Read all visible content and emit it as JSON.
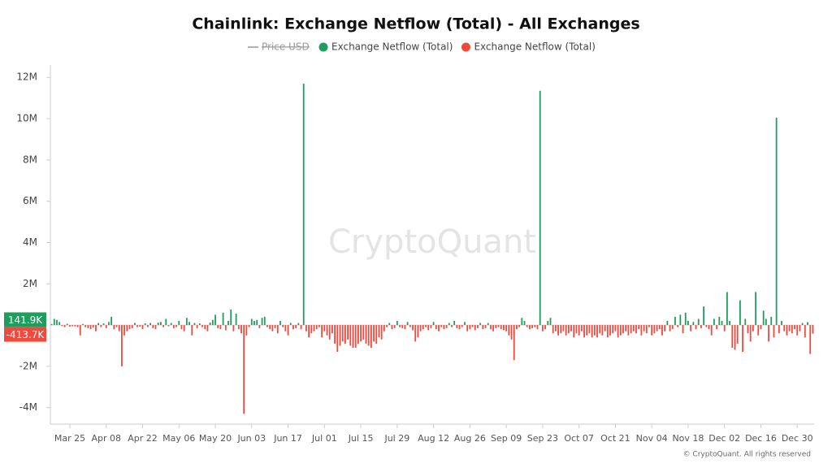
{
  "chart_data": {
    "type": "bar",
    "title": "Chainlink: Exchange Netflow (Total) - All Exchanges",
    "price_legend": "Price USD",
    "watermark": "CryptoQuant",
    "footer": "© CryptoQuant. All rights reserved",
    "ylim": [
      -4800000,
      12600000
    ],
    "yticks": [
      {
        "value": -4000000,
        "label": "-4M"
      },
      {
        "value": -2000000,
        "label": "-2M"
      },
      {
        "value": 2000000,
        "label": "2M"
      },
      {
        "value": 4000000,
        "label": "4M"
      },
      {
        "value": 6000000,
        "label": "6M"
      },
      {
        "value": 8000000,
        "label": "8M"
      },
      {
        "value": 10000000,
        "label": "10M"
      },
      {
        "value": 12000000,
        "label": "12M"
      }
    ],
    "categories": [
      null,
      null,
      null,
      null,
      null,
      null,
      null,
      "Mar 25",
      null,
      null,
      null,
      null,
      null,
      null,
      null,
      null,
      null,
      null,
      null,
      null,
      null,
      "Apr 08",
      null,
      null,
      null,
      null,
      null,
      null,
      null,
      null,
      null,
      null,
      null,
      null,
      null,
      "Apr 22",
      null,
      null,
      null,
      null,
      null,
      null,
      null,
      null,
      null,
      null,
      null,
      null,
      null,
      "May 06",
      null,
      null,
      null,
      null,
      null,
      null,
      null,
      null,
      null,
      null,
      null,
      null,
      null,
      "May 20",
      null,
      null,
      null,
      null,
      null,
      null,
      null,
      null,
      null,
      null,
      null,
      null,
      null,
      "Jun 03",
      null,
      null,
      null,
      null,
      null,
      null,
      null,
      null,
      null,
      null,
      null,
      null,
      null,
      "Jun 17",
      null,
      null,
      null,
      null,
      null,
      null,
      null,
      null,
      null,
      null,
      null,
      null,
      null,
      "Jul 01",
      null,
      null,
      null,
      null,
      null,
      null,
      null,
      null,
      null,
      null,
      null,
      null,
      null,
      "Jul 15",
      null,
      null,
      null,
      null,
      null,
      null,
      null,
      null,
      null,
      null,
      null,
      null,
      null,
      "Jul 29",
      null,
      null,
      null,
      null,
      null,
      null,
      null,
      null,
      null,
      null,
      null,
      null,
      null,
      "Aug 12",
      null,
      null,
      null,
      null,
      null,
      null,
      null,
      null,
      null,
      null,
      null,
      null,
      null,
      "Aug 26",
      null,
      null,
      null,
      null,
      null,
      null,
      null,
      null,
      null,
      null,
      null,
      null,
      null,
      "Sep 09",
      null,
      null,
      null,
      null,
      null,
      null,
      null,
      null,
      null,
      null,
      null,
      null,
      null,
      "Sep 23",
      null,
      null,
      null,
      null,
      null,
      null,
      null,
      null,
      null,
      null,
      null,
      null,
      null,
      "Oct 07",
      null,
      null,
      null,
      null,
      null,
      null,
      null,
      null,
      null,
      null,
      null,
      null,
      null,
      "Oct 21",
      null,
      null,
      null,
      null,
      null,
      null,
      null,
      null,
      null,
      null,
      null,
      null,
      null,
      "Nov 04",
      null,
      null,
      null,
      null,
      null,
      null,
      null,
      null,
      null,
      null,
      null,
      null,
      null,
      "Nov 18",
      null,
      null,
      null,
      null,
      null,
      null,
      null,
      null,
      null,
      null,
      null,
      null,
      null,
      "Dec 02",
      null,
      null,
      null,
      null,
      null,
      null,
      null,
      null,
      null,
      null,
      null,
      null,
      null,
      "Dec 16",
      null,
      null,
      null,
      null,
      null,
      null,
      null,
      null,
      null,
      null,
      null,
      null,
      null,
      "Dec 30",
      null,
      null,
      null,
      null,
      null,
      null
    ],
    "series": [
      {
        "name": "Exchange Netflow (Total)",
        "color": "#1e9e5e",
        "current_label": "141.9K",
        "values": [
          50000,
          300000,
          250000,
          150000,
          null,
          null,
          60000,
          null,
          null,
          null,
          null,
          null,
          50000,
          null,
          null,
          null,
          null,
          null,
          100000,
          null,
          80000,
          null,
          150000,
          400000,
          null,
          null,
          null,
          null,
          null,
          null,
          null,
          null,
          100000,
          null,
          null,
          null,
          80000,
          null,
          100000,
          null,
          null,
          120000,
          150000,
          null,
          300000,
          null,
          100000,
          null,
          null,
          200000,
          null,
          null,
          350000,
          150000,
          null,
          100000,
          null,
          80000,
          null,
          null,
          null,
          120000,
          250000,
          500000,
          null,
          null,
          600000,
          null,
          200000,
          750000,
          null,
          550000,
          null,
          null,
          null,
          null,
          null,
          300000,
          200000,
          250000,
          null,
          350000,
          400000,
          null,
          null,
          null,
          null,
          null,
          200000,
          null,
          null,
          null,
          100000,
          null,
          null,
          100000,
          null,
          11700000,
          null,
          null,
          null,
          null,
          null,
          null,
          null,
          null,
          null,
          null,
          null,
          null,
          null,
          null,
          null,
          null,
          null,
          null,
          null,
          null,
          null,
          null,
          null,
          null,
          null,
          null,
          null,
          null,
          null,
          null,
          null,
          null,
          100000,
          null,
          null,
          200000,
          null,
          null,
          null,
          150000,
          null,
          null,
          null,
          null,
          null,
          null,
          null,
          null,
          null,
          150000,
          null,
          null,
          null,
          null,
          null,
          100000,
          null,
          200000,
          null,
          null,
          null,
          150000,
          null,
          null,
          null,
          null,
          null,
          100000,
          null,
          null,
          100000,
          null,
          null,
          null,
          null,
          null,
          null,
          null,
          null,
          null,
          null,
          null,
          null,
          350000,
          200000,
          null,
          null,
          null,
          null,
          null,
          11350000,
          null,
          null,
          200000,
          350000,
          null,
          null,
          null,
          null,
          null,
          null,
          null,
          null,
          null,
          null,
          null,
          null,
          null,
          null,
          null,
          null,
          null,
          null,
          null,
          null,
          null,
          null,
          null,
          null,
          null,
          null,
          null,
          null,
          null,
          null,
          null,
          null,
          null,
          null,
          null,
          null,
          null,
          null,
          null,
          null,
          null,
          null,
          null,
          null,
          200000,
          null,
          null,
          400000,
          null,
          500000,
          null,
          600000,
          200000,
          null,
          150000,
          null,
          300000,
          null,
          900000,
          null,
          null,
          null,
          300000,
          null,
          400000,
          200000,
          null,
          1600000,
          200000,
          null,
          null,
          null,
          1200000,
          null,
          300000,
          null,
          null,
          null,
          1600000,
          null,
          null,
          700000,
          300000,
          null,
          400000,
          null,
          10050000,
          null,
          200000,
          null,
          null,
          null,
          null,
          null,
          null,
          null,
          100000,
          null,
          141900,
          null,
          null
        ]
      },
      {
        "name": "Exchange Netflow (Total)",
        "color": "#f0493e",
        "current_label": "-413.7K",
        "values": [
          null,
          null,
          null,
          null,
          -50000,
          -100000,
          null,
          -80000,
          -60000,
          -70000,
          -100000,
          -500000,
          null,
          -100000,
          -150000,
          -200000,
          -120000,
          -300000,
          null,
          -100000,
          null,
          -150000,
          null,
          null,
          -200000,
          -100000,
          -300000,
          -2000000,
          -500000,
          -300000,
          -200000,
          -150000,
          null,
          -100000,
          -80000,
          -200000,
          null,
          -100000,
          null,
          -150000,
          -200000,
          null,
          null,
          -100000,
          null,
          -60000,
          null,
          -150000,
          -100000,
          null,
          -200000,
          -300000,
          null,
          null,
          -500000,
          null,
          -150000,
          null,
          -100000,
          -200000,
          -300000,
          null,
          null,
          null,
          -150000,
          -200000,
          null,
          -250000,
          null,
          null,
          -300000,
          null,
          -200000,
          -400000,
          -4300000,
          -500000,
          -100000,
          null,
          null,
          null,
          -150000,
          null,
          null,
          -100000,
          -200000,
          -300000,
          -150000,
          -400000,
          null,
          -100000,
          -300000,
          -500000,
          null,
          -200000,
          -150000,
          null,
          -200000,
          null,
          -300000,
          -600000,
          -400000,
          -300000,
          -200000,
          -100000,
          -600000,
          -300000,
          -500000,
          -700000,
          -400000,
          -900000,
          -1300000,
          -1000000,
          -800000,
          -900000,
          -700000,
          -1000000,
          -1100000,
          -1100000,
          -900000,
          -800000,
          -700000,
          -900000,
          -1000000,
          -1100000,
          -800000,
          -900000,
          -600000,
          -700000,
          -300000,
          -100000,
          null,
          -200000,
          -150000,
          null,
          -100000,
          -150000,
          -200000,
          null,
          -100000,
          -250000,
          -800000,
          -600000,
          -300000,
          -200000,
          -100000,
          -250000,
          -150000,
          null,
          -200000,
          -300000,
          -100000,
          -200000,
          -150000,
          null,
          -100000,
          null,
          -150000,
          -200000,
          -100000,
          null,
          -300000,
          -200000,
          -100000,
          -250000,
          -150000,
          null,
          -200000,
          -150000,
          null,
          -200000,
          -300000,
          -150000,
          -100000,
          -200000,
          -250000,
          -300000,
          -500000,
          -700000,
          -1700000,
          -200000,
          -100000,
          null,
          null,
          -100000,
          -200000,
          -150000,
          -100000,
          -200000,
          null,
          -300000,
          -200000,
          null,
          null,
          -400000,
          -300000,
          -500000,
          -400000,
          -300000,
          -500000,
          -400000,
          -300000,
          -600000,
          -400000,
          -500000,
          -300000,
          -600000,
          -500000,
          -400000,
          -600000,
          -500000,
          -600000,
          -400000,
          -500000,
          -300000,
          -600000,
          -500000,
          -400000,
          -300000,
          -600000,
          -500000,
          -400000,
          -300000,
          -500000,
          -400000,
          -300000,
          -400000,
          -200000,
          -500000,
          -300000,
          -400000,
          -100000,
          -500000,
          -400000,
          -300000,
          -200000,
          -500000,
          -300000,
          null,
          -300000,
          -200000,
          null,
          -100000,
          null,
          -400000,
          null,
          null,
          -300000,
          null,
          -200000,
          null,
          -150000,
          null,
          -100000,
          -200000,
          -500000,
          null,
          -200000,
          null,
          null,
          -300000,
          null,
          null,
          -1100000,
          -1200000,
          -900000,
          null,
          -1300000,
          null,
          -400000,
          -800000,
          -300000,
          null,
          -500000,
          -200000,
          null,
          null,
          -800000,
          null,
          -600000,
          null,
          -400000,
          null,
          -300000,
          -500000,
          -300000,
          -400000,
          -200000,
          -500000,
          -300000,
          null,
          -600000,
          null,
          -1400000,
          -413700
        ]
      }
    ]
  }
}
